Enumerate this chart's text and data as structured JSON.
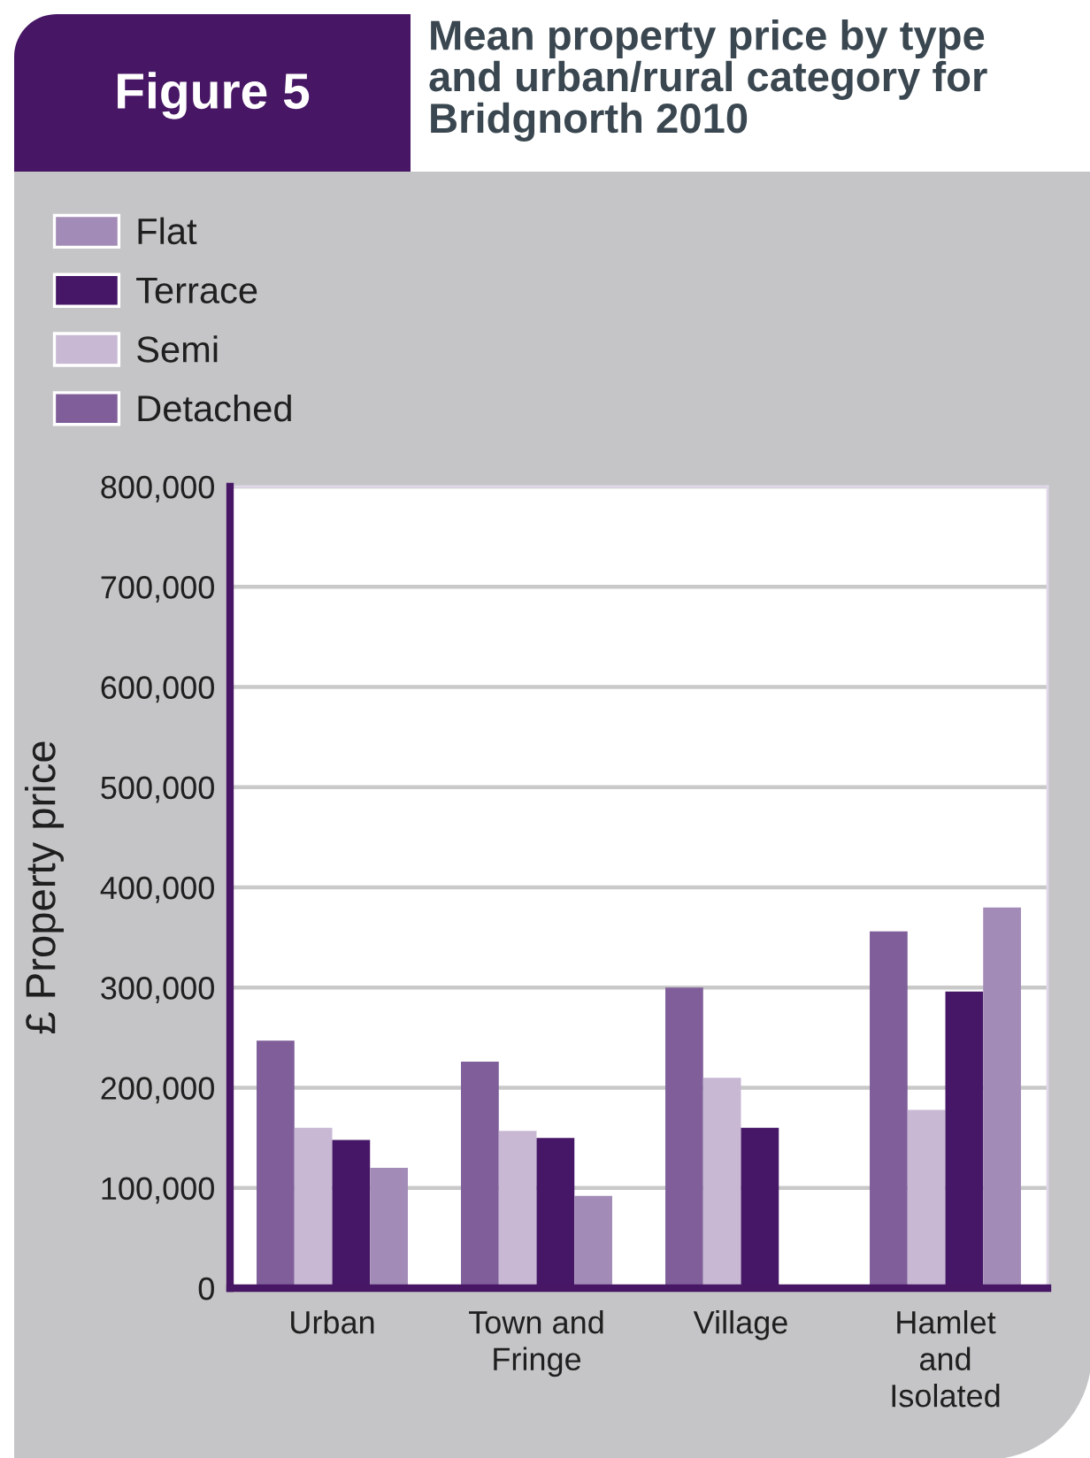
{
  "chart_data": {
    "type": "bar",
    "title": "Mean property price by type\nand urban/rural category for\nBridgnorth 2010",
    "annotations": [
      "Figure 5"
    ],
    "ylabel": "£ Property price",
    "categories": [
      "Urban",
      "Town and\nFringe",
      "Village",
      "Hamlet\nand\nIsolated"
    ],
    "series": [
      {
        "name": "Detached",
        "color": "#7f5e9a",
        "values": [
          247000,
          226000,
          300000,
          356000
        ]
      },
      {
        "name": "Semi",
        "color": "#c8b8d4",
        "values": [
          160000,
          157000,
          210000,
          178000
        ]
      },
      {
        "name": "Terrace",
        "color": "#461766",
        "values": [
          148000,
          150000,
          160000,
          296000
        ]
      },
      {
        "name": "Flat",
        "color": "#a28bb6",
        "values": [
          120000,
          92000,
          null,
          380000
        ]
      }
    ],
    "ylim": [
      0,
      800000
    ],
    "yticks": [
      0,
      {
        "value": 100000,
        "label": "100,000"
      },
      {
        "value": 200000,
        "label": "200,000"
      },
      {
        "value": 300000,
        "label": "300,000"
      },
      {
        "value": 400000,
        "label": "400,000"
      },
      {
        "value": 500000,
        "label": "500,000"
      },
      {
        "value": 600000,
        "label": "600,000"
      },
      {
        "value": 700000,
        "label": "700,000"
      },
      {
        "value": 800000,
        "label": "800,000"
      }
    ],
    "grid": "y",
    "legend": "top left"
  }
}
